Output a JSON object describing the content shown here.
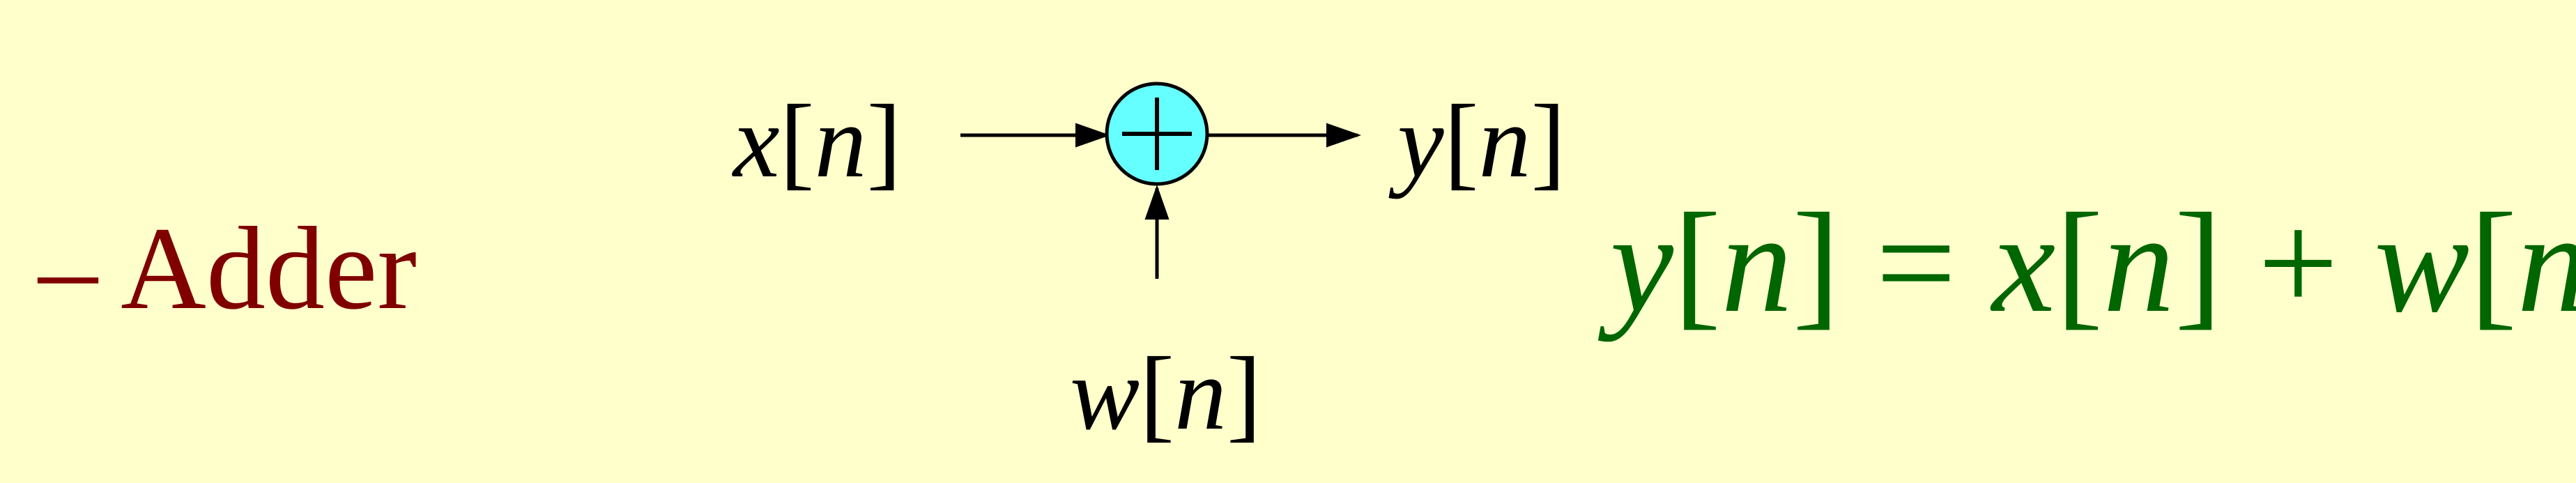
{
  "colors": {
    "background": "#FFFFCC",
    "bullet_text": "#800000",
    "equation_text": "#006600",
    "adder_fill": "#66FFFF",
    "line": "#000000"
  },
  "bullet": {
    "dash": "–",
    "label": "Adder"
  },
  "diagram": {
    "input_top": {
      "var": "x",
      "open": "[",
      "index": "n",
      "close": "]"
    },
    "input_bottom": {
      "var": "w",
      "open": "[",
      "index": "n",
      "close": "]"
    },
    "output": {
      "var": "y",
      "open": "[",
      "index": "n",
      "close": "]"
    },
    "adder_symbol": "plus-in-circle"
  },
  "equation": {
    "lhs_var": "y",
    "eq": "=",
    "term1_var": "x",
    "plus": "+",
    "term2_var": "w",
    "index": "n",
    "open": "[",
    "close": "]"
  }
}
